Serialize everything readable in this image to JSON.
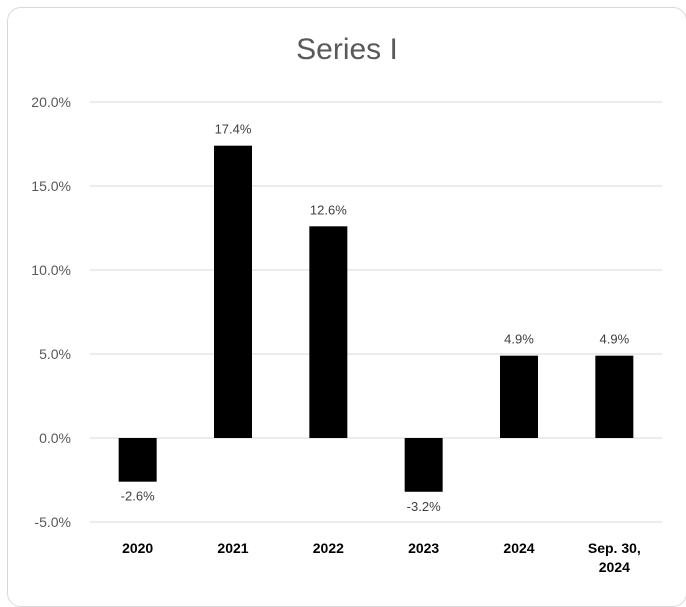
{
  "chart_data": {
    "type": "bar",
    "title": "Series I",
    "categories": [
      [
        "2020"
      ],
      [
        "2021"
      ],
      [
        "2022"
      ],
      [
        "2023"
      ],
      [
        "2024"
      ],
      [
        "Sep. 30,",
        "2024"
      ]
    ],
    "series": [
      {
        "values": [
          -2.6,
          17.4,
          12.6,
          -3.2,
          4.9,
          4.9
        ],
        "labels": [
          "-2.6%",
          "17.4%",
          "12.6%",
          "-3.2%",
          "4.9%",
          "4.9%"
        ],
        "color": "#000000"
      }
    ],
    "ylim": [
      -5,
      20
    ],
    "yticks": [
      20,
      15,
      10,
      5,
      0,
      -5
    ],
    "ytick_labels": [
      "20.0%",
      "15.0%",
      "10.0%",
      "5.0%",
      "0.0%",
      "-5.0%"
    ],
    "grid": true,
    "legend": "none"
  }
}
